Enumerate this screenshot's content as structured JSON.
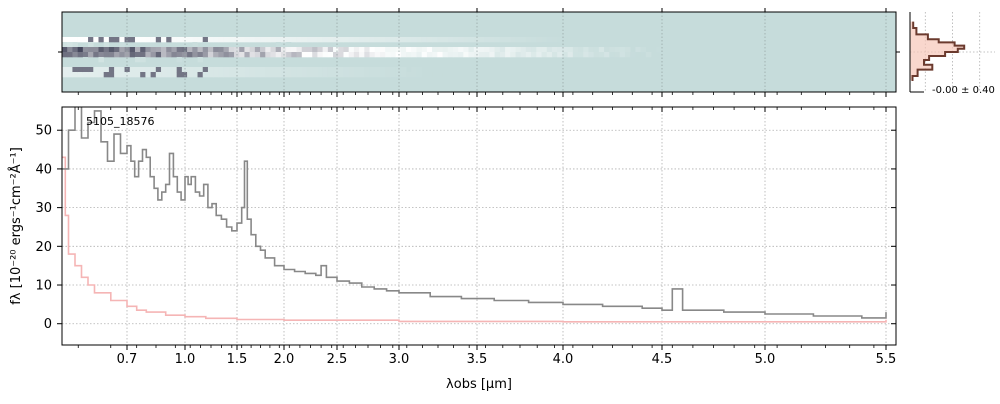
{
  "chart_data": [
    {
      "panel": "2d-spectrum",
      "type": "heatmap",
      "trace_rows": [
        0.35,
        0.5,
        0.75
      ],
      "colors": {
        "background": "#c6dcdb",
        "dark": "#161933",
        "light": "#ffffff"
      }
    },
    {
      "panel": "profile",
      "type": "line",
      "annotation": "-0.00 ± 0.40",
      "profile_y": [
        0.12,
        0.2,
        0.28,
        0.34,
        0.38,
        0.42,
        0.46,
        0.5,
        0.55,
        0.6,
        0.66,
        0.72,
        0.8
      ],
      "profile_x": [
        0.05,
        0.1,
        0.28,
        0.45,
        0.7,
        0.85,
        0.75,
        0.55,
        0.3,
        0.22,
        0.35,
        0.12,
        0.04
      ],
      "colors": {
        "line": "#6b3a2e",
        "fill": "#f7c6b8"
      }
    },
    {
      "panel": "1d-spectrum",
      "type": "line",
      "annotation": "5105_18576",
      "xlabel": "λobs [μm]",
      "ylabel": "fλ [10⁻²⁰ ergs⁻¹cm⁻²Å⁻¹]",
      "xticks": [
        0.7,
        1.0,
        1.5,
        2.0,
        2.5,
        3.0,
        3.5,
        4.0,
        4.5,
        5.0,
        5.5
      ],
      "xtick_labels": [
        "0.7",
        "1.0",
        "1.5",
        "2.0",
        "2.5",
        "3.0",
        "3.5",
        "4.0",
        "4.5",
        "5.0",
        "5.5"
      ],
      "yticks": [
        0,
        10,
        20,
        30,
        40,
        50
      ],
      "ylim": [
        -5.5,
        56
      ],
      "grid": true,
      "series": [
        {
          "role": "flux",
          "color": "#888888",
          "points": [
            [
              0.5,
              40
            ],
            [
              0.52,
              50
            ],
            [
              0.54,
              58
            ],
            [
              0.56,
              48
            ],
            [
              0.58,
              52
            ],
            [
              0.6,
              55
            ],
            [
              0.62,
              47
            ],
            [
              0.64,
              42
            ],
            [
              0.66,
              49
            ],
            [
              0.68,
              44
            ],
            [
              0.7,
              46
            ],
            [
              0.72,
              42
            ],
            [
              0.74,
              38
            ],
            [
              0.76,
              42
            ],
            [
              0.78,
              45
            ],
            [
              0.8,
              43
            ],
            [
              0.82,
              38
            ],
            [
              0.84,
              35
            ],
            [
              0.86,
              32
            ],
            [
              0.88,
              34
            ],
            [
              0.9,
              36
            ],
            [
              0.92,
              44
            ],
            [
              0.94,
              38
            ],
            [
              0.96,
              34
            ],
            [
              0.98,
              32
            ],
            [
              1.0,
              38
            ],
            [
              1.03,
              36
            ],
            [
              1.06,
              38
            ],
            [
              1.1,
              34
            ],
            [
              1.14,
              33
            ],
            [
              1.18,
              36
            ],
            [
              1.22,
              30
            ],
            [
              1.26,
              31
            ],
            [
              1.3,
              28
            ],
            [
              1.35,
              27
            ],
            [
              1.4,
              25
            ],
            [
              1.45,
              24
            ],
            [
              1.5,
              26
            ],
            [
              1.55,
              30
            ],
            [
              1.58,
              42
            ],
            [
              1.61,
              27
            ],
            [
              1.65,
              23
            ],
            [
              1.7,
              20
            ],
            [
              1.75,
              19
            ],
            [
              1.8,
              17
            ],
            [
              1.9,
              15
            ],
            [
              2.0,
              14
            ],
            [
              2.1,
              13.5
            ],
            [
              2.2,
              13
            ],
            [
              2.3,
              12.5
            ],
            [
              2.35,
              15
            ],
            [
              2.4,
              12
            ],
            [
              2.5,
              11
            ],
            [
              2.6,
              10.5
            ],
            [
              2.7,
              9.5
            ],
            [
              2.8,
              9
            ],
            [
              2.9,
              8.5
            ],
            [
              3.0,
              8
            ],
            [
              3.2,
              7
            ],
            [
              3.4,
              6.5
            ],
            [
              3.6,
              6
            ],
            [
              3.8,
              5.5
            ],
            [
              4.0,
              5
            ],
            [
              4.2,
              4.5
            ],
            [
              4.4,
              4
            ],
            [
              4.5,
              3.5
            ],
            [
              4.55,
              9
            ],
            [
              4.6,
              3.5
            ],
            [
              4.8,
              3
            ],
            [
              5.0,
              2.5
            ],
            [
              5.2,
              2
            ],
            [
              5.4,
              1.5
            ],
            [
              5.5,
              3
            ]
          ]
        },
        {
          "role": "error",
          "color": "#f5b5b5",
          "points": [
            [
              0.5,
              43
            ],
            [
              0.51,
              28
            ],
            [
              0.52,
              18
            ],
            [
              0.54,
              15
            ],
            [
              0.56,
              12
            ],
            [
              0.58,
              10
            ],
            [
              0.6,
              8
            ],
            [
              0.65,
              6
            ],
            [
              0.7,
              4.5
            ],
            [
              0.75,
              3.5
            ],
            [
              0.8,
              3
            ],
            [
              0.9,
              2.2
            ],
            [
              1.0,
              1.8
            ],
            [
              1.2,
              1.4
            ],
            [
              1.5,
              1.1
            ],
            [
              2.0,
              0.9
            ],
            [
              3.0,
              0.6
            ],
            [
              4.0,
              0.5
            ],
            [
              5.0,
              0.5
            ],
            [
              5.5,
              1.0
            ]
          ]
        }
      ]
    }
  ]
}
